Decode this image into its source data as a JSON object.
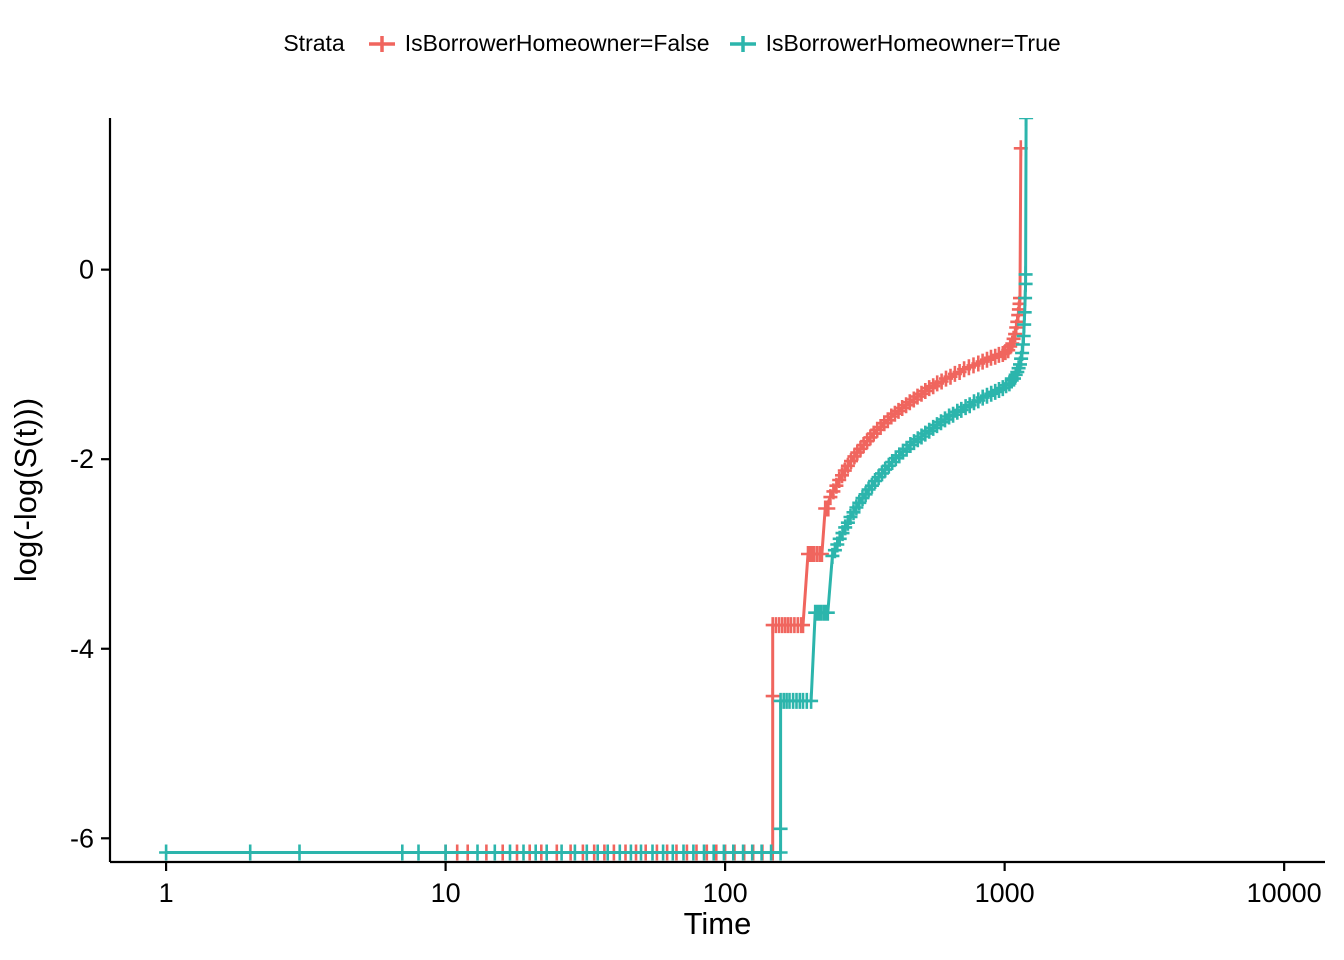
{
  "figure": {
    "background": "#FFFFFF"
  },
  "legend": {
    "title": "Strata",
    "entries": [
      {
        "label": "IsBorrowerHomeowner=False",
        "color": "#F0655E"
      },
      {
        "label": "IsBorrowerHomeowner=True",
        "color": "#2CB5AC"
      }
    ]
  },
  "chart_data": {
    "type": "line",
    "title": "",
    "xlabel": "Time",
    "ylabel": "log(-log(S(t)))",
    "x_scale": "log10",
    "xlim": [
      0.63,
      14000
    ],
    "ylim": [
      -6.25,
      1.6
    ],
    "x_ticks": [
      1,
      10,
      100,
      1000,
      10000
    ],
    "x_tick_labels": [
      "1",
      "10",
      "100",
      "1000",
      "10000"
    ],
    "y_ticks": [
      0,
      -2,
      -4,
      -6
    ],
    "y_tick_labels": [
      "0",
      "-2",
      "-4",
      "-6"
    ],
    "grid": false,
    "legend_position": "top",
    "legend_title": "Strata",
    "axis_color": "#000000",
    "series": [
      {
        "name": "IsBorrowerHomeowner=False",
        "color": "#F0655E",
        "baseline_y": -6.15,
        "step_points": [
          [
            10,
            -6.15
          ],
          [
            148,
            -6.15
          ],
          [
            148,
            -3.75
          ],
          [
            190,
            -3.75
          ],
          [
            198,
            -3.0
          ],
          [
            222,
            -3.0
          ],
          [
            228,
            -2.52
          ],
          [
            238,
            -2.4
          ],
          [
            250,
            -2.28
          ],
          [
            262,
            -2.17
          ],
          [
            275,
            -2.07
          ],
          [
            290,
            -1.97
          ],
          [
            305,
            -1.89
          ],
          [
            322,
            -1.81
          ],
          [
            340,
            -1.73
          ],
          [
            360,
            -1.66
          ],
          [
            382,
            -1.59
          ],
          [
            405,
            -1.52
          ],
          [
            430,
            -1.46
          ],
          [
            458,
            -1.4
          ],
          [
            488,
            -1.34
          ],
          [
            520,
            -1.28
          ],
          [
            555,
            -1.23
          ],
          [
            595,
            -1.18
          ],
          [
            640,
            -1.13
          ],
          [
            690,
            -1.08
          ],
          [
            745,
            -1.03
          ],
          [
            805,
            -0.99
          ],
          [
            865,
            -0.95
          ],
          [
            925,
            -0.92
          ],
          [
            985,
            -0.89
          ],
          [
            1030,
            -0.85
          ],
          [
            1065,
            -0.78
          ],
          [
            1090,
            -0.68
          ],
          [
            1110,
            -0.55
          ],
          [
            1125,
            -0.42
          ],
          [
            1135,
            -0.3
          ],
          [
            1142,
            1.28
          ]
        ],
        "censor_marks": [
          [
            148,
            -4.5
          ],
          [
            152,
            -3.75
          ],
          [
            156,
            -3.75
          ],
          [
            160,
            -3.75
          ],
          [
            164,
            -3.75
          ],
          [
            168,
            -3.75
          ],
          [
            172,
            -3.75
          ],
          [
            177,
            -3.75
          ],
          [
            182,
            -3.75
          ],
          [
            187,
            -3.75
          ],
          [
            200,
            -3.0
          ],
          [
            204,
            -3.0
          ],
          [
            208,
            -3.0
          ],
          [
            213,
            -3.0
          ],
          [
            218,
            -3.0
          ],
          [
            230,
            -2.52
          ],
          [
            234,
            -2.52
          ],
          [
            244,
            -2.34
          ],
          [
            256,
            -2.22
          ],
          [
            268,
            -2.12
          ],
          [
            282,
            -2.02
          ],
          [
            297,
            -1.93
          ],
          [
            313,
            -1.85
          ],
          [
            331,
            -1.77
          ],
          [
            350,
            -1.69
          ],
          [
            371,
            -1.62
          ],
          [
            393,
            -1.55
          ],
          [
            417,
            -1.49
          ],
          [
            444,
            -1.43
          ],
          [
            473,
            -1.37
          ],
          [
            504,
            -1.31
          ],
          [
            537,
            -1.25
          ],
          [
            574,
            -1.2
          ],
          [
            617,
            -1.15
          ],
          [
            664,
            -1.1
          ],
          [
            716,
            -1.05
          ],
          [
            774,
            -1.01
          ],
          [
            834,
            -0.97
          ],
          [
            894,
            -0.93
          ],
          [
            954,
            -0.9
          ],
          [
            1006,
            -0.87
          ],
          [
            1047,
            -0.81
          ],
          [
            1077,
            -0.73
          ],
          [
            1100,
            -0.61
          ],
          [
            1118,
            -0.48
          ],
          [
            1130,
            -0.36
          ],
          [
            1142,
            1.28
          ]
        ],
        "baseline_censor_x": [
          11,
          12,
          14,
          16,
          18,
          20,
          22,
          25,
          28,
          31,
          34,
          37,
          40,
          44,
          48,
          52,
          57,
          62,
          67,
          73,
          79,
          86,
          93,
          100,
          108,
          117,
          126,
          136
        ]
      },
      {
        "name": "IsBorrowerHomeowner=True",
        "color": "#2CB5AC",
        "baseline_y": -6.15,
        "step_points": [
          [
            1,
            -6.15
          ],
          [
            158,
            -6.15
          ],
          [
            158,
            -4.55
          ],
          [
            203,
            -4.55
          ],
          [
            210,
            -3.62
          ],
          [
            233,
            -3.62
          ],
          [
            242,
            -3.02
          ],
          [
            252,
            -2.9
          ],
          [
            263,
            -2.78
          ],
          [
            275,
            -2.67
          ],
          [
            288,
            -2.56
          ],
          [
            302,
            -2.46
          ],
          [
            318,
            -2.37
          ],
          [
            335,
            -2.28
          ],
          [
            354,
            -2.19
          ],
          [
            374,
            -2.11
          ],
          [
            396,
            -2.03
          ],
          [
            420,
            -1.96
          ],
          [
            446,
            -1.89
          ],
          [
            474,
            -1.82
          ],
          [
            504,
            -1.76
          ],
          [
            537,
            -1.7
          ],
          [
            573,
            -1.64
          ],
          [
            612,
            -1.58
          ],
          [
            654,
            -1.53
          ],
          [
            700,
            -1.48
          ],
          [
            750,
            -1.43
          ],
          [
            805,
            -1.38
          ],
          [
            865,
            -1.33
          ],
          [
            925,
            -1.29
          ],
          [
            985,
            -1.25
          ],
          [
            1040,
            -1.2
          ],
          [
            1080,
            -1.15
          ],
          [
            1110,
            -1.08
          ],
          [
            1135,
            -1.0
          ],
          [
            1155,
            -0.88
          ],
          [
            1170,
            -0.7
          ],
          [
            1180,
            -0.45
          ],
          [
            1188,
            -0.15
          ],
          [
            1193,
            1.6
          ]
        ],
        "censor_marks": [
          [
            158,
            -5.9
          ],
          [
            162,
            -4.55
          ],
          [
            166,
            -4.55
          ],
          [
            170,
            -4.55
          ],
          [
            175,
            -4.55
          ],
          [
            180,
            -4.55
          ],
          [
            185,
            -4.55
          ],
          [
            190,
            -4.55
          ],
          [
            196,
            -4.55
          ],
          [
            213,
            -3.62
          ],
          [
            217,
            -3.62
          ],
          [
            221,
            -3.62
          ],
          [
            226,
            -3.62
          ],
          [
            230,
            -3.62
          ],
          [
            247,
            -2.96
          ],
          [
            257,
            -2.84
          ],
          [
            269,
            -2.72
          ],
          [
            281,
            -2.61
          ],
          [
            295,
            -2.51
          ],
          [
            310,
            -2.41
          ],
          [
            326,
            -2.32
          ],
          [
            344,
            -2.23
          ],
          [
            364,
            -2.15
          ],
          [
            385,
            -2.07
          ],
          [
            408,
            -1.99
          ],
          [
            433,
            -1.92
          ],
          [
            460,
            -1.85
          ],
          [
            489,
            -1.79
          ],
          [
            520,
            -1.73
          ],
          [
            555,
            -1.67
          ],
          [
            592,
            -1.61
          ],
          [
            633,
            -1.55
          ],
          [
            677,
            -1.5
          ],
          [
            725,
            -1.45
          ],
          [
            777,
            -1.4
          ],
          [
            835,
            -1.35
          ],
          [
            895,
            -1.31
          ],
          [
            955,
            -1.27
          ],
          [
            1012,
            -1.22
          ],
          [
            1060,
            -1.17
          ],
          [
            1095,
            -1.11
          ],
          [
            1122,
            -1.04
          ],
          [
            1145,
            -0.94
          ],
          [
            1162,
            -0.79
          ],
          [
            1175,
            -0.58
          ],
          [
            1184,
            -0.3
          ],
          [
            1188,
            -0.05
          ]
        ],
        "baseline_censor_x": [
          1,
          2,
          3,
          7,
          8,
          10,
          13,
          15,
          17,
          19,
          21,
          23,
          26,
          29,
          32,
          35,
          38,
          42,
          46,
          50,
          55,
          60,
          65,
          71,
          77,
          84,
          91,
          99,
          107,
          116,
          125,
          135,
          146
        ]
      }
    ]
  }
}
